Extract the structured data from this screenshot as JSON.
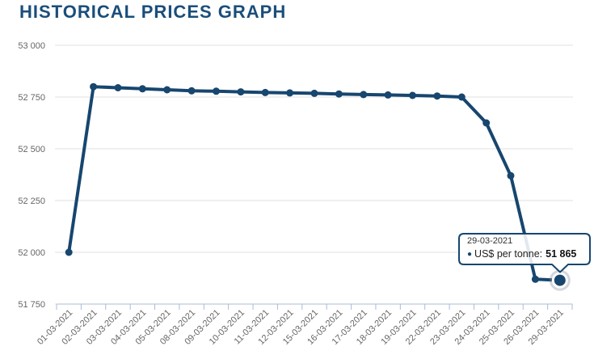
{
  "page": {
    "title": "HISTORICAL PRICES GRAPH"
  },
  "chart_data": {
    "type": "line",
    "title": "HISTORICAL PRICES GRAPH",
    "xlabel": "",
    "ylabel": "",
    "legend": "none",
    "grid": true,
    "categories": [
      "01-03-2021",
      "02-03-2021",
      "03-03-2021",
      "04-03-2021",
      "05-03-2021",
      "08-03-2021",
      "09-03-2021",
      "10-03-2021",
      "11-03-2021",
      "12-03-2021",
      "15-03-2021",
      "16-03-2021",
      "17-03-2021",
      "18-03-2021",
      "19-03-2021",
      "22-03-2021",
      "23-03-2021",
      "24-03-2021",
      "25-03-2021",
      "26-03-2021",
      "29-03-2021"
    ],
    "series": [
      {
        "name": "US$ per tonne",
        "values": [
          52000,
          52800,
          52795,
          52790,
          52785,
          52780,
          52778,
          52775,
          52772,
          52770,
          52768,
          52765,
          52762,
          52760,
          52758,
          52755,
          52750,
          52625,
          52370,
          51870,
          51865
        ]
      }
    ],
    "ylim": [
      51750,
      53000
    ],
    "ytick_step": 250,
    "yticks": [
      {
        "value": 51750,
        "label": "51 750"
      },
      {
        "value": 52000,
        "label": "52 000"
      },
      {
        "value": 52250,
        "label": "52 250"
      },
      {
        "value": 52500,
        "label": "52 500"
      },
      {
        "value": 52750,
        "label": "52 750"
      },
      {
        "value": 53000,
        "label": "53 000"
      }
    ],
    "highlight_index": 20,
    "colors": {
      "line": "#17466f",
      "grid": "#e2e2e2",
      "axis": "#a8bdd4",
      "labels": "#666666",
      "title": "#1a4e7b",
      "tooltip_border": "#17466f",
      "halo": "#808d99"
    }
  },
  "tooltip": {
    "date": "29-03-2021",
    "bullet": "●",
    "label": "US$ per tonne:",
    "value": "51 865"
  }
}
